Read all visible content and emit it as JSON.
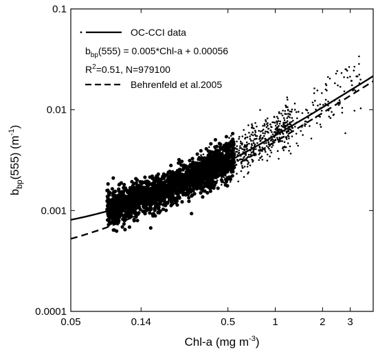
{
  "chart_data": {
    "type": "scatter",
    "x_scale": "log",
    "y_scale": "log",
    "xlim": [
      0.05,
      4.2
    ],
    "ylim": [
      0.0001,
      0.1
    ],
    "x_ticks": [
      {
        "value": 0.05,
        "label": "0.05"
      },
      {
        "value": 0.14,
        "label": "0.14"
      },
      {
        "value": 0.5,
        "label": "0.5"
      },
      {
        "value": 1,
        "label": "1"
      },
      {
        "value": 2,
        "label": "2"
      },
      {
        "value": 3,
        "label": "3"
      }
    ],
    "y_ticks": [
      {
        "value": 0.0001,
        "label": "0.0001"
      },
      {
        "value": 0.001,
        "label": "0.001"
      },
      {
        "value": 0.01,
        "label": "0.01"
      },
      {
        "value": 0.1,
        "label": "0.1"
      }
    ],
    "xlabel": {
      "main": "Chl-a (mg m",
      "sup": "-3",
      "tail": ")"
    },
    "ylabel": {
      "main": "b",
      "sub": "bp",
      "mid": "(555) (m",
      "sup": "-1",
      "tail": ")"
    },
    "grid": false,
    "legend_position": "top-left",
    "legend": {
      "fit_label": "OC-CCI data",
      "equation": {
        "b": "b",
        "sub": "bp",
        "rest": "(555) = 0.005*Chl-a + 0.00056"
      },
      "stats": {
        "r": "R",
        "sup": "2",
        "rest": "=0.51, N=979100"
      },
      "ref_label": "Behrenfeld et al.2005"
    },
    "series": [
      {
        "name": "OC-CCI data",
        "type": "scatter",
        "color": "#000000",
        "n_rendered": 2600,
        "description_of_relation": "scatter follows linear fit; dense cloud 0.08-0.6 Chl-a",
        "sample_points": [
          [
            0.09,
            0.00095
          ],
          [
            0.1,
            0.0012
          ],
          [
            0.14,
            0.0013
          ],
          [
            0.2,
            0.0016
          ],
          [
            0.3,
            0.0019
          ],
          [
            0.5,
            0.0035
          ],
          [
            0.7,
            0.006
          ],
          [
            1.0,
            0.008
          ],
          [
            1.5,
            0.012
          ],
          [
            2.0,
            0.018
          ],
          [
            3.0,
            0.035
          ]
        ]
      },
      {
        "name": "OC-CCI data",
        "type": "line",
        "style": "solid",
        "color": "#000000",
        "slope": 0.005,
        "intercept": 0.00056,
        "x": [
          0.05,
          0.07,
          0.1,
          0.14,
          0.2,
          0.3,
          0.5,
          0.7,
          1,
          1.5,
          2,
          3,
          4.2
        ],
        "values": [
          0.00081,
          0.00091,
          0.00106,
          0.00126,
          0.00156,
          0.00206,
          0.00306,
          0.00406,
          0.00556,
          0.00806,
          0.01056,
          0.01556,
          0.02156
        ]
      },
      {
        "name": "Behrenfeld et al.2005",
        "type": "line",
        "style": "dashed",
        "color": "#000000",
        "slope": 0.0045,
        "intercept": 0.0003,
        "x": [
          0.05,
          0.07,
          0.1,
          0.14,
          0.2,
          0.3,
          0.5,
          0.7,
          1,
          1.5,
          2,
          3,
          4.2
        ],
        "values": [
          0.000525,
          0.000615,
          0.00075,
          0.00093,
          0.0012,
          0.00165,
          0.00255,
          0.00345,
          0.0048,
          0.00705,
          0.0093,
          0.0138,
          0.0192
        ]
      }
    ]
  }
}
